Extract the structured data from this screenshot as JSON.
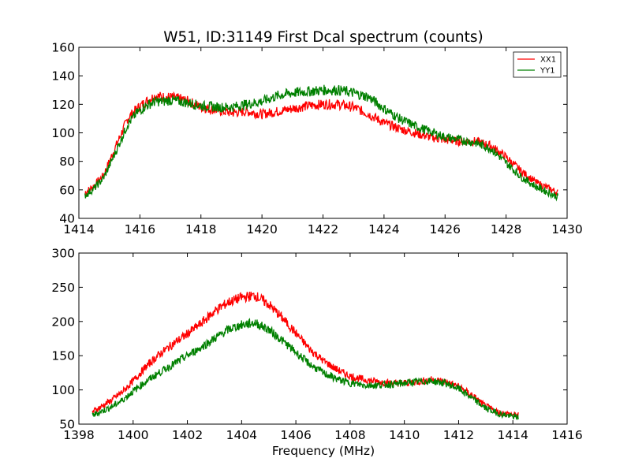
{
  "chart_data": [
    {
      "type": "line",
      "title": "W51, ID:31149 First Dcal spectrum (counts)",
      "xlabel": "",
      "ylabel": "",
      "xlim": [
        1414,
        1430
      ],
      "ylim": [
        40,
        160
      ],
      "xticks": [
        "1414",
        "1416",
        "1418",
        "1420",
        "1422",
        "1424",
        "1426",
        "1428",
        "1430"
      ],
      "yticks": [
        "40",
        "60",
        "80",
        "100",
        "120",
        "140",
        "160"
      ],
      "legend": {
        "placement": "top-right",
        "entries": [
          "XX1",
          "YY1"
        ]
      },
      "series": [
        {
          "name": "XX1",
          "color": "#ff0000",
          "x": [
            1414.2,
            1414.5,
            1414.8,
            1415.0,
            1415.3,
            1415.6,
            1415.9,
            1416.2,
            1416.5,
            1416.8,
            1417.0,
            1417.3,
            1417.6,
            1418.0,
            1418.5,
            1419.0,
            1419.5,
            1420.0,
            1420.5,
            1421.0,
            1421.5,
            1422.0,
            1422.5,
            1423.0,
            1423.5,
            1424.0,
            1424.5,
            1425.0,
            1425.5,
            1426.0,
            1426.5,
            1427.0,
            1427.5,
            1428.0,
            1428.5,
            1429.0,
            1429.5,
            1429.7
          ],
          "values": [
            58,
            63,
            70,
            80,
            95,
            110,
            117,
            122,
            126,
            125,
            125,
            124,
            122,
            118,
            116,
            114,
            115,
            113,
            115,
            117,
            119,
            120,
            120,
            118,
            113,
            107,
            103,
            100,
            97,
            95,
            94,
            94,
            91,
            83,
            73,
            65,
            60,
            58
          ]
        },
        {
          "name": "YY1",
          "color": "#008000",
          "x": [
            1414.2,
            1414.5,
            1414.8,
            1415.0,
            1415.3,
            1415.6,
            1415.9,
            1416.2,
            1416.5,
            1416.8,
            1417.0,
            1417.3,
            1417.6,
            1418.0,
            1418.5,
            1419.0,
            1419.5,
            1420.0,
            1420.5,
            1421.0,
            1421.5,
            1422.0,
            1422.5,
            1423.0,
            1423.5,
            1424.0,
            1424.5,
            1425.0,
            1425.5,
            1426.0,
            1426.5,
            1427.0,
            1427.5,
            1428.0,
            1428.5,
            1429.0,
            1429.5,
            1429.7
          ],
          "values": [
            56,
            61,
            68,
            77,
            91,
            106,
            114,
            119,
            122,
            122,
            123,
            122,
            121,
            119,
            118,
            118,
            120,
            122,
            126,
            128,
            129,
            130,
            130,
            128,
            125,
            117,
            110,
            105,
            101,
            97,
            95,
            93,
            89,
            79,
            69,
            62,
            57,
            55
          ]
        }
      ]
    },
    {
      "type": "line",
      "title": "",
      "xlabel": "Frequency (MHz)",
      "ylabel": "",
      "xlim": [
        1398,
        1416
      ],
      "ylim": [
        50,
        300
      ],
      "xticks": [
        "1398",
        "1400",
        "1402",
        "1404",
        "1406",
        "1408",
        "1410",
        "1412",
        "1414",
        "1416"
      ],
      "yticks": [
        "50",
        "100",
        "150",
        "200",
        "250",
        "300"
      ],
      "series": [
        {
          "name": "XX1",
          "color": "#ff0000",
          "x": [
            1398.5,
            1398.8,
            1399.2,
            1399.6,
            1400.0,
            1400.5,
            1401.0,
            1401.5,
            1402.0,
            1402.5,
            1403.0,
            1403.5,
            1404.0,
            1404.5,
            1405.0,
            1405.5,
            1406.0,
            1406.5,
            1407.0,
            1407.5,
            1408.0,
            1408.5,
            1409.0,
            1409.5,
            1410.0,
            1410.5,
            1411.0,
            1411.5,
            1412.0,
            1412.5,
            1413.0,
            1413.5,
            1414.0,
            1414.2
          ],
          "values": [
            68,
            75,
            85,
            97,
            113,
            135,
            153,
            168,
            182,
            197,
            215,
            228,
            235,
            238,
            225,
            205,
            183,
            160,
            143,
            130,
            120,
            115,
            112,
            110,
            110,
            112,
            115,
            112,
            105,
            92,
            76,
            67,
            64,
            63
          ]
        },
        {
          "name": "YY1",
          "color": "#008000",
          "x": [
            1398.5,
            1398.8,
            1399.2,
            1399.6,
            1400.0,
            1400.5,
            1401.0,
            1401.5,
            1402.0,
            1402.5,
            1403.0,
            1403.5,
            1404.0,
            1404.5,
            1405.0,
            1405.5,
            1406.0,
            1406.5,
            1407.0,
            1407.5,
            1408.0,
            1408.5,
            1409.0,
            1409.5,
            1410.0,
            1410.5,
            1411.0,
            1411.5,
            1412.0,
            1412.5,
            1413.0,
            1413.5,
            1414.0,
            1414.2
          ],
          "values": [
            63,
            68,
            75,
            85,
            98,
            113,
            126,
            138,
            150,
            162,
            175,
            188,
            195,
            198,
            188,
            172,
            155,
            138,
            125,
            116,
            110,
            107,
            107,
            108,
            110,
            112,
            113,
            110,
            102,
            88,
            73,
            65,
            61,
            60
          ]
        }
      ]
    }
  ]
}
